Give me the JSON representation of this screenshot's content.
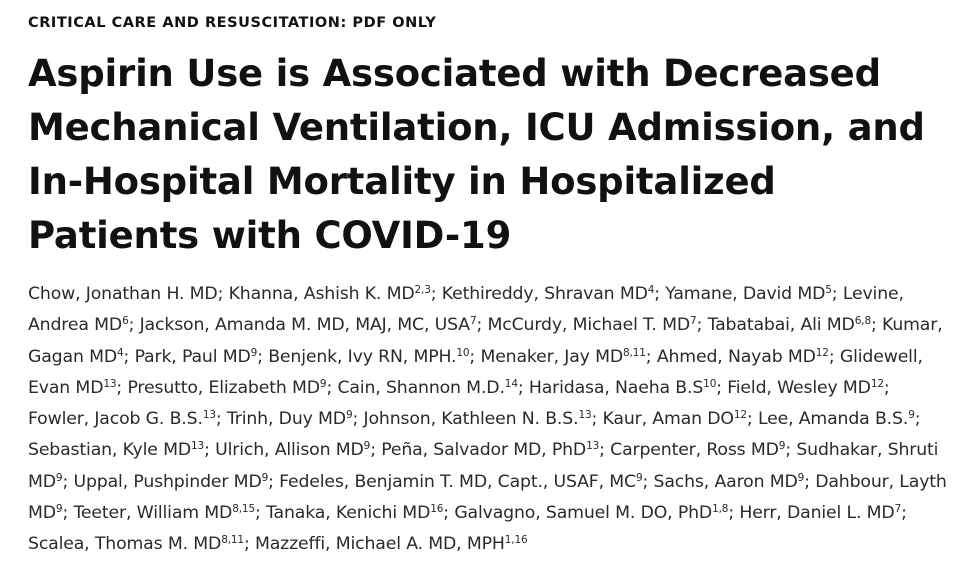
{
  "article": {
    "section_label": "CRITICAL CARE AND RESUSCITATION: PDF ONLY",
    "title": "Aspirin Use is Associated with Decreased Mechanical Ventilation, ICU Admission, and In-Hospital Mortality in Hospitalized Patients with COVID-19",
    "authors": [
      {
        "name": "Chow, Jonathan H. MD",
        "sup": ""
      },
      {
        "name": "Khanna, Ashish K. MD",
        "sup": "2,3"
      },
      {
        "name": "Kethireddy, Shravan MD",
        "sup": "4"
      },
      {
        "name": "Yamane, David MD",
        "sup": "5"
      },
      {
        "name": "Levine, Andrea MD",
        "sup": "6"
      },
      {
        "name": "Jackson, Amanda M. MD, MAJ, MC, USA",
        "sup": "7"
      },
      {
        "name": "McCurdy, Michael T. MD",
        "sup": "7"
      },
      {
        "name": "Tabatabai, Ali MD",
        "sup": "6,8"
      },
      {
        "name": "Kumar, Gagan MD",
        "sup": "4"
      },
      {
        "name": "Park, Paul MD",
        "sup": "9"
      },
      {
        "name": "Benjenk, Ivy RN, MPH.",
        "sup": "10"
      },
      {
        "name": "Menaker, Jay MD",
        "sup": "8,11"
      },
      {
        "name": "Ahmed, Nayab MD",
        "sup": "12"
      },
      {
        "name": "Glidewell, Evan MD",
        "sup": "13"
      },
      {
        "name": "Presutto, Elizabeth MD",
        "sup": "9"
      },
      {
        "name": "Cain, Shannon M.D.",
        "sup": "14"
      },
      {
        "name": "Haridasa, Naeha B.S",
        "sup": "10"
      },
      {
        "name": "Field, Wesley MD",
        "sup": "12"
      },
      {
        "name": "Fowler, Jacob G. B.S.",
        "sup": "13"
      },
      {
        "name": "Trinh, Duy MD",
        "sup": "9"
      },
      {
        "name": "Johnson, Kathleen N. B.S.",
        "sup": "13"
      },
      {
        "name": "Kaur, Aman DO",
        "sup": "12"
      },
      {
        "name": "Lee, Amanda B.S.",
        "sup": "9"
      },
      {
        "name": "Sebastian, Kyle MD",
        "sup": "13"
      },
      {
        "name": "Ulrich, Allison MD",
        "sup": "9"
      },
      {
        "name": "Peña, Salvador MD, PhD",
        "sup": "13"
      },
      {
        "name": "Carpenter, Ross MD",
        "sup": "9"
      },
      {
        "name": "Sudhakar, Shruti MD",
        "sup": "9"
      },
      {
        "name": "Uppal, Pushpinder MD",
        "sup": "9"
      },
      {
        "name": "Fedeles, Benjamin T. MD, Capt., USAF, MC",
        "sup": "9"
      },
      {
        "name": "Sachs, Aaron MD",
        "sup": "9"
      },
      {
        "name": "Dahbour, Layth MD",
        "sup": "9"
      },
      {
        "name": "Teeter, William MD",
        "sup": "8,15"
      },
      {
        "name": "Tanaka, Kenichi MD",
        "sup": "16"
      },
      {
        "name": "Galvagno, Samuel M. DO, PhD",
        "sup": "1,8"
      },
      {
        "name": "Herr, Daniel L. MD",
        "sup": "7"
      },
      {
        "name": "Scalea, Thomas M. MD",
        "sup": "8,11"
      },
      {
        "name": "Mazzeffi, Michael A. MD, MPH",
        "sup": "1,16"
      }
    ]
  }
}
